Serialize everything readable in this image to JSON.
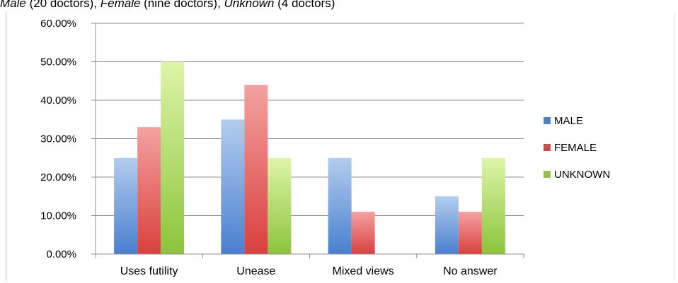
{
  "caption": {
    "c1": "Male",
    "c2": " (20 doctors), ",
    "c3": "Female",
    "c4": " (nine doctors), ",
    "c5": "Unknown",
    "c6": " (4 doctors)"
  },
  "chart_data": {
    "type": "bar",
    "categories": [
      "Uses futility",
      "Unease",
      "Mixed views",
      "No answer"
    ],
    "series": [
      {
        "name": "MALE",
        "values": [
          25,
          35,
          25,
          15
        ],
        "color": "#4f81bd"
      },
      {
        "name": "FEMALE",
        "values": [
          33,
          44,
          11,
          11
        ],
        "color": "#c0504d"
      },
      {
        "name": "UNKNOWN",
        "values": [
          50,
          25,
          0,
          25
        ],
        "color": "#9bbb59"
      }
    ],
    "ylim": [
      0,
      60
    ],
    "yticks": [
      "0.00%",
      "10.00%",
      "20.00%",
      "30.00%",
      "40.00%",
      "50.00%",
      "60.00%"
    ],
    "title": "",
    "xlabel": "",
    "ylabel": "",
    "grid": true,
    "legend_position": "right"
  }
}
